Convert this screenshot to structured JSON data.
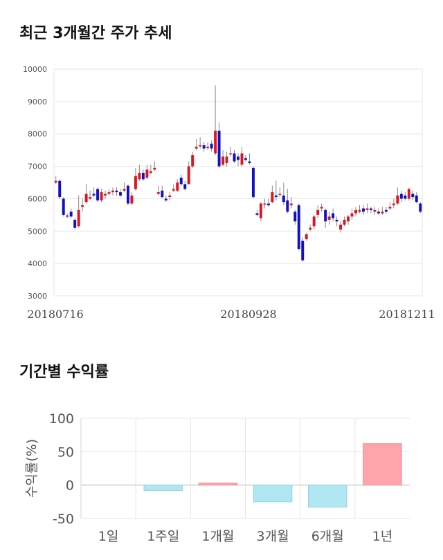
{
  "price_section": {
    "title": "최근 3개월간 주가 추세"
  },
  "return_section": {
    "title": "기간별 수익률"
  },
  "chart_data": [
    {
      "type": "candlestick",
      "title": "최근 3개월간 주가 추세",
      "ylim": [
        3000,
        10000
      ],
      "yticks": [
        3000,
        4000,
        5000,
        6000,
        7000,
        8000,
        9000,
        10000
      ],
      "xticks": [
        "20180716",
        "20180928",
        "20181211"
      ],
      "grid": true,
      "colors": {
        "up": "#e0141e",
        "down": "#1010c8",
        "wick": "#888888"
      },
      "candles": [
        {
          "o": 6500,
          "c": 6550,
          "h": 6700,
          "l": 6450
        },
        {
          "o": 6550,
          "c": 6050,
          "h": 6600,
          "l": 6000
        },
        {
          "o": 6000,
          "c": 5500,
          "h": 6050,
          "l": 5450
        },
        {
          "o": 5480,
          "c": 5450,
          "h": 5550,
          "l": 5400
        },
        {
          "o": 5600,
          "c": 5450,
          "h": 5700,
          "l": 5400
        },
        {
          "o": 5350,
          "c": 5100,
          "h": 5400,
          "l": 5050
        },
        {
          "o": 5150,
          "c": 5650,
          "h": 6100,
          "l": 5100
        },
        {
          "o": 5750,
          "c": 5800,
          "h": 6000,
          "l": 5600
        },
        {
          "o": 5900,
          "c": 6150,
          "h": 6450,
          "l": 5850
        },
        {
          "o": 6000,
          "c": 6050,
          "h": 6250,
          "l": 5950
        },
        {
          "o": 6150,
          "c": 6100,
          "h": 6350,
          "l": 6050
        },
        {
          "o": 6300,
          "c": 5950,
          "h": 6350,
          "l": 5900
        },
        {
          "o": 5950,
          "c": 6200,
          "h": 6300,
          "l": 5900
        },
        {
          "o": 6100,
          "c": 6150,
          "h": 6250,
          "l": 6000
        },
        {
          "o": 6150,
          "c": 6200,
          "h": 6300,
          "l": 6100
        },
        {
          "o": 6200,
          "c": 6250,
          "h": 6350,
          "l": 6100
        },
        {
          "o": 6250,
          "c": 6200,
          "h": 6350,
          "l": 6100
        },
        {
          "o": 6200,
          "c": 6100,
          "h": 6300,
          "l": 6050
        },
        {
          "o": 6250,
          "c": 6300,
          "h": 6500,
          "l": 6200
        },
        {
          "o": 6400,
          "c": 5850,
          "h": 6450,
          "l": 5800
        },
        {
          "o": 5850,
          "c": 6100,
          "h": 6200,
          "l": 5800
        },
        {
          "o": 6300,
          "c": 6700,
          "h": 6950,
          "l": 6250
        },
        {
          "o": 6600,
          "c": 6800,
          "h": 7050,
          "l": 6550
        },
        {
          "o": 6800,
          "c": 6600,
          "h": 6900,
          "l": 6550
        },
        {
          "o": 6650,
          "c": 6900,
          "h": 7050,
          "l": 6600
        },
        {
          "o": 6800,
          "c": 6850,
          "h": 7050,
          "l": 6750
        },
        {
          "o": 6900,
          "c": 6950,
          "h": 7150,
          "l": 6850
        },
        {
          "o": 6150,
          "c": 6200,
          "h": 6400,
          "l": 6100
        },
        {
          "o": 6250,
          "c": 6050,
          "h": 6400,
          "l": 6000
        },
        {
          "o": 6000,
          "c": 5950,
          "h": 6100,
          "l": 5900
        },
        {
          "o": 6050,
          "c": 6100,
          "h": 6200,
          "l": 5950
        },
        {
          "o": 6250,
          "c": 6300,
          "h": 6450,
          "l": 6200
        },
        {
          "o": 6250,
          "c": 6500,
          "h": 6600,
          "l": 6200
        },
        {
          "o": 6650,
          "c": 6450,
          "h": 6750,
          "l": 6400
        },
        {
          "o": 6450,
          "c": 6300,
          "h": 6550,
          "l": 6250
        },
        {
          "o": 6450,
          "c": 7000,
          "h": 7150,
          "l": 6450
        },
        {
          "o": 7000,
          "c": 7350,
          "h": 7450,
          "l": 6950
        },
        {
          "o": 7550,
          "c": 7600,
          "h": 7850,
          "l": 7500
        },
        {
          "o": 7650,
          "c": 7650,
          "h": 7900,
          "l": 7550
        },
        {
          "o": 7650,
          "c": 7550,
          "h": 7750,
          "l": 7450
        },
        {
          "o": 7600,
          "c": 7600,
          "h": 7750,
          "l": 7500
        },
        {
          "o": 7700,
          "c": 7550,
          "h": 7800,
          "l": 7450
        },
        {
          "o": 7400,
          "c": 8100,
          "h": 9500,
          "l": 7350
        },
        {
          "o": 8100,
          "c": 7000,
          "h": 8350,
          "l": 6950
        },
        {
          "o": 7050,
          "c": 7300,
          "h": 7500,
          "l": 7000
        },
        {
          "o": 7100,
          "c": 7300,
          "h": 7450,
          "l": 7000
        },
        {
          "o": 7400,
          "c": 7400,
          "h": 7600,
          "l": 7300
        },
        {
          "o": 7400,
          "c": 7150,
          "h": 7500,
          "l": 7100
        },
        {
          "o": 7300,
          "c": 7200,
          "h": 7400,
          "l": 7000
        },
        {
          "o": 7050,
          "c": 7400,
          "h": 7600,
          "l": 7000
        },
        {
          "o": 7250,
          "c": 7200,
          "h": 7350,
          "l": 7150
        },
        {
          "o": 7150,
          "c": 7100,
          "h": 7400,
          "l": 7050
        },
        {
          "o": 6950,
          "c": 6050,
          "h": 7000,
          "l": 6000
        },
        {
          "o": 5550,
          "c": 5500,
          "h": 5650,
          "l": 5450
        },
        {
          "o": 5400,
          "c": 5850,
          "h": 5900,
          "l": 5300
        },
        {
          "o": 5850,
          "c": 5850,
          "h": 6000,
          "l": 5700
        },
        {
          "o": 5850,
          "c": 5800,
          "h": 6000,
          "l": 5750
        },
        {
          "o": 5900,
          "c": 6200,
          "h": 6400,
          "l": 5850
        },
        {
          "o": 6100,
          "c": 6050,
          "h": 6550,
          "l": 5950
        },
        {
          "o": 6150,
          "c": 6150,
          "h": 6350,
          "l": 6050
        },
        {
          "o": 6100,
          "c": 5900,
          "h": 6500,
          "l": 5800
        },
        {
          "o": 5950,
          "c": 5600,
          "h": 6300,
          "l": 5550
        },
        {
          "o": 5800,
          "c": 5850,
          "h": 6050,
          "l": 5700
        },
        {
          "o": 5600,
          "c": 5300,
          "h": 5650,
          "l": 5200
        },
        {
          "o": 5800,
          "c": 4450,
          "h": 5850,
          "l": 4400
        },
        {
          "o": 4700,
          "c": 4100,
          "h": 4800,
          "l": 4050
        },
        {
          "o": 4750,
          "c": 4900,
          "h": 4950,
          "l": 4700
        },
        {
          "o": 5050,
          "c": 5100,
          "h": 5200,
          "l": 5000
        },
        {
          "o": 5150,
          "c": 5450,
          "h": 5500,
          "l": 5050
        },
        {
          "o": 5500,
          "c": 5650,
          "h": 5800,
          "l": 5400
        },
        {
          "o": 5700,
          "c": 5750,
          "h": 5850,
          "l": 5600
        },
        {
          "o": 5650,
          "c": 5300,
          "h": 5700,
          "l": 5100
        },
        {
          "o": 5350,
          "c": 5450,
          "h": 5600,
          "l": 5200
        },
        {
          "o": 5550,
          "c": 5400,
          "h": 5700,
          "l": 5300
        },
        {
          "o": 5350,
          "c": 5300,
          "h": 5450,
          "l": 5150
        },
        {
          "o": 5050,
          "c": 5200,
          "h": 5300,
          "l": 4950
        },
        {
          "o": 5200,
          "c": 5350,
          "h": 5450,
          "l": 5150
        },
        {
          "o": 5300,
          "c": 5450,
          "h": 5500,
          "l": 5200
        },
        {
          "o": 5450,
          "c": 5550,
          "h": 5700,
          "l": 5350
        },
        {
          "o": 5550,
          "c": 5650,
          "h": 5750,
          "l": 5450
        },
        {
          "o": 5600,
          "c": 5650,
          "h": 5800,
          "l": 5550
        },
        {
          "o": 5700,
          "c": 5600,
          "h": 5800,
          "l": 5500
        },
        {
          "o": 5650,
          "c": 5700,
          "h": 5850,
          "l": 5550
        },
        {
          "o": 5700,
          "c": 5650,
          "h": 5750,
          "l": 5550
        },
        {
          "o": 5600,
          "c": 5650,
          "h": 5750,
          "l": 5500
        },
        {
          "o": 5600,
          "c": 5550,
          "h": 5700,
          "l": 5500
        },
        {
          "o": 5550,
          "c": 5600,
          "h": 5750,
          "l": 5500
        },
        {
          "o": 5650,
          "c": 5600,
          "h": 5750,
          "l": 5550
        },
        {
          "o": 5700,
          "c": 5750,
          "h": 5900,
          "l": 5650
        },
        {
          "o": 5800,
          "c": 5850,
          "h": 6000,
          "l": 5700
        },
        {
          "o": 5850,
          "c": 6100,
          "h": 6350,
          "l": 5800
        },
        {
          "o": 6150,
          "c": 6000,
          "h": 6250,
          "l": 5900
        },
        {
          "o": 6100,
          "c": 6000,
          "h": 6200,
          "l": 5950
        },
        {
          "o": 6000,
          "c": 6300,
          "h": 6350,
          "l": 5950
        },
        {
          "o": 6150,
          "c": 6050,
          "h": 6250,
          "l": 5950
        },
        {
          "o": 6100,
          "c": 5900,
          "h": 6200,
          "l": 5850
        },
        {
          "o": 5850,
          "c": 5600,
          "h": 5900,
          "l": 5550
        }
      ]
    },
    {
      "type": "bar",
      "title": "기간별 수익률",
      "ylabel": "수익률(%)",
      "ylim": [
        -50,
        100
      ],
      "yticks": [
        -50,
        0,
        50,
        100
      ],
      "categories": [
        "1일",
        "1주일",
        "1개월",
        "3개월",
        "6개월",
        "1년"
      ],
      "values": [
        0,
        -8,
        3,
        -25,
        -33,
        62
      ],
      "grid": true,
      "colors": {
        "positive": "#ffa5a9",
        "negative": "#b0e7f2",
        "positive_edge": "#f28a8f",
        "negative_edge": "#8fd3e6"
      }
    }
  ]
}
